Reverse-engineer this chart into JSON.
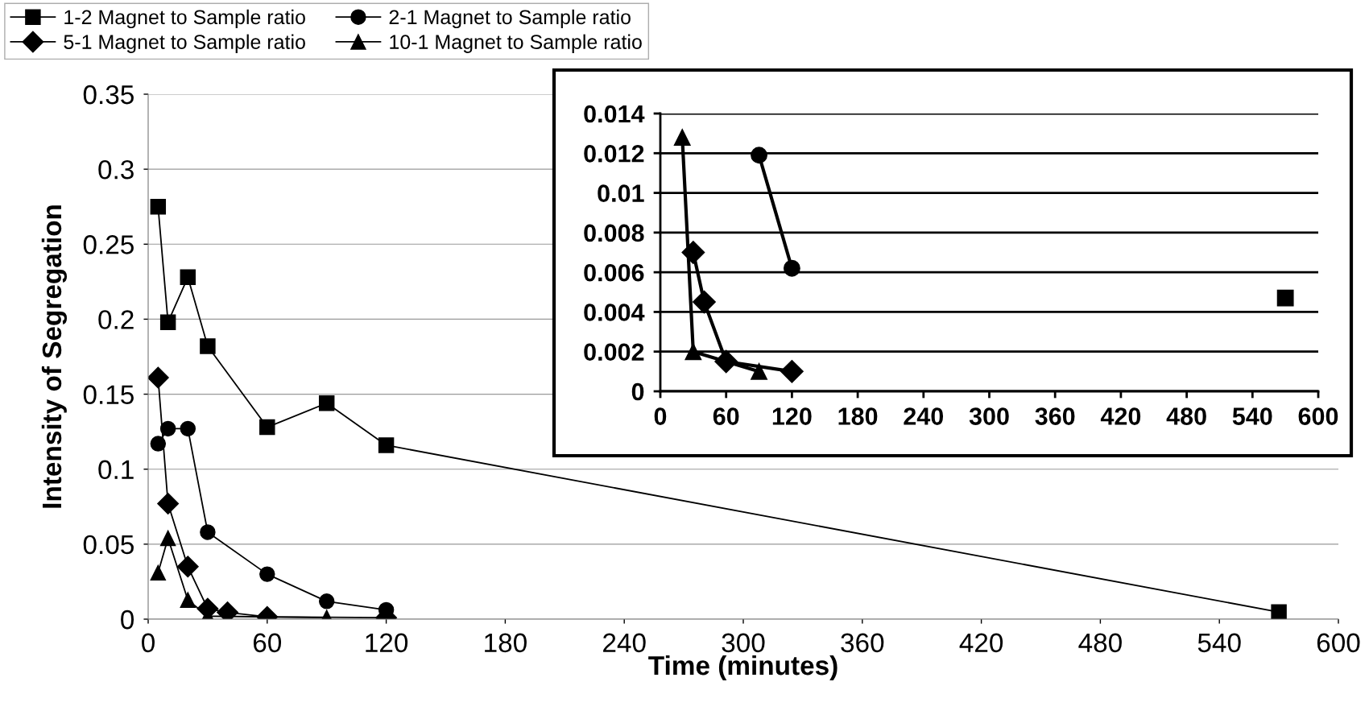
{
  "chart_data": [
    {
      "type": "line",
      "xlabel": "Time (minutes)",
      "ylabel": "Intensity of Segregation",
      "xlim": [
        0,
        600
      ],
      "xticks": [
        0,
        60,
        120,
        180,
        240,
        300,
        360,
        420,
        480,
        540,
        600
      ],
      "ylim": [
        0,
        0.35
      ],
      "yticks": [
        0,
        0.05,
        0.1,
        0.15,
        0.2,
        0.25,
        0.3,
        0.35
      ],
      "grid": "y",
      "legend": "top left",
      "series": [
        {
          "name": "1-2 Magnet to Sample ratio",
          "color": "#000000",
          "marker": "square",
          "x": [
            5,
            10,
            20,
            30,
            60,
            90,
            120,
            570
          ],
          "values": [
            0.275,
            0.198,
            0.228,
            0.182,
            0.128,
            0.144,
            0.116,
            0.0047
          ]
        },
        {
          "name": "2-1 Magnet to Sample ratio",
          "color": "#000000",
          "marker": "circle",
          "x": [
            5,
            10,
            20,
            30,
            60,
            90,
            120
          ],
          "values": [
            0.117,
            0.127,
            0.127,
            0.058,
            0.03,
            0.0119,
            0.0062
          ]
        },
        {
          "name": "5-1 Magnet to Sample ratio",
          "color": "#000000",
          "marker": "diamond",
          "x": [
            5,
            10,
            20,
            30,
            40,
            60,
            120
          ],
          "values": [
            0.161,
            0.077,
            0.035,
            0.007,
            0.0045,
            0.0015,
            0.001
          ]
        },
        {
          "name": "10-1 Magnet to Sample ratio",
          "color": "#000000",
          "marker": "triangle",
          "x": [
            5,
            10,
            20,
            30,
            90
          ],
          "values": [
            0.031,
            0.054,
            0.0128,
            0.002,
            0.001
          ]
        }
      ]
    },
    {
      "type": "line",
      "xlim": [
        0,
        600
      ],
      "xticks": [
        0,
        60,
        120,
        180,
        240,
        300,
        360,
        420,
        480,
        540,
        600
      ],
      "ylim": [
        0,
        0.014
      ],
      "yticks": [
        0,
        0.002,
        0.004,
        0.006,
        0.008,
        0.01,
        0.012,
        0.014
      ],
      "grid": "y",
      "series": [
        {
          "color": "#000000",
          "marker": "square",
          "x": [
            570
          ],
          "values": [
            0.0047
          ]
        },
        {
          "color": "#000000",
          "marker": "circle",
          "x": [
            90,
            120
          ],
          "values": [
            0.0119,
            0.0062
          ]
        },
        {
          "color": "#000000",
          "marker": "diamond",
          "x": [
            30,
            40,
            60,
            120
          ],
          "values": [
            0.007,
            0.0045,
            0.0015,
            0.001
          ]
        },
        {
          "color": "#000000",
          "marker": "triangle",
          "x": [
            20,
            30,
            90
          ],
          "values": [
            0.0128,
            0.002,
            0.001
          ]
        }
      ]
    }
  ]
}
